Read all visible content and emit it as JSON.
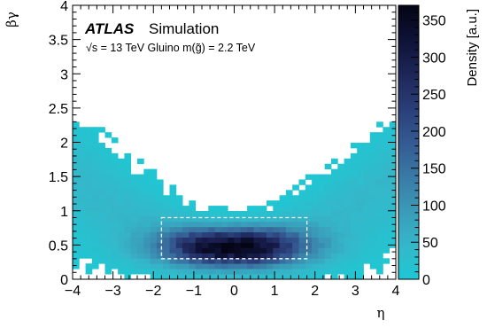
{
  "chart_data": {
    "type": "heatmap",
    "experiment": "ATLAS",
    "label": "Simulation",
    "subtitle": "√s = 13 TeV   Gluino m(g̃) = 2.2 TeV",
    "xlabel": "η",
    "ylabel": "βγ",
    "zlabel": "Density [a.u.]",
    "xlim": [
      -4,
      4
    ],
    "ylim": [
      0,
      4
    ],
    "zlim": [
      0,
      370
    ],
    "x_ticks": [
      -4,
      -3,
      -2,
      -1,
      0,
      1,
      2,
      3,
      4
    ],
    "y_ticks": [
      0,
      0.5,
      1,
      1.5,
      2,
      2.5,
      3,
      3.5,
      4
    ],
    "z_ticks": [
      0,
      50,
      100,
      150,
      200,
      250,
      300,
      350
    ],
    "x_tick_labels": [
      "−4",
      "−3",
      "−2",
      "−1",
      "0",
      "1",
      "2",
      "3",
      "4"
    ],
    "y_tick_labels": [
      "0",
      "0.5",
      "1",
      "1.5",
      "2",
      "2.5",
      "3",
      "3.5",
      "4"
    ],
    "z_tick_labels": [
      "0",
      "50",
      "100",
      "150",
      "200",
      "250",
      "300",
      "350"
    ],
    "colormap": [
      "#1ec8d4",
      "#35b7c9",
      "#3a9bb8",
      "#3a7aa6",
      "#345a92",
      "#2a3e78",
      "#1e2658",
      "#0e1236",
      "#050515"
    ],
    "selection_box": {
      "eta": [
        -1.8,
        1.8
      ],
      "betagamma": [
        0.3,
        0.9
      ]
    },
    "bins": {
      "x_edges_range": [
        -4,
        4
      ],
      "n_x": 50,
      "y_edges_range": [
        0,
        2.3
      ],
      "n_y": 30
    },
    "grid": false
  }
}
